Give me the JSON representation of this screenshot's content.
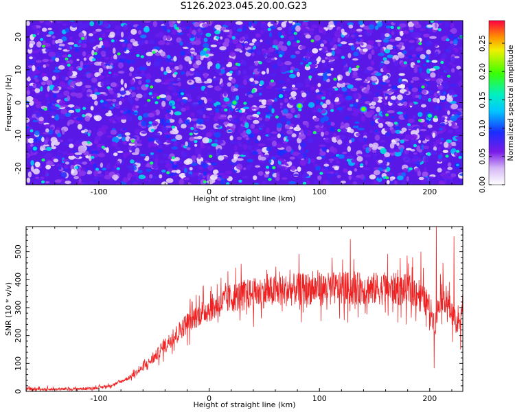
{
  "title": "S126.2023.045.20.00.G23",
  "chart_data": [
    {
      "type": "heatmap",
      "title": "S126.2023.045.20.00.G23",
      "xlabel": "Height of straight line (km)",
      "ylabel": "Frequency (Hz)",
      "xlim": [
        -166,
        230
      ],
      "ylim": [
        -25,
        25
      ],
      "xticks": [
        -100,
        0,
        100,
        200
      ],
      "xtick_labels": [
        "-100",
        "0",
        "100",
        "200"
      ],
      "yticks": [
        -20,
        -10,
        0,
        10,
        20
      ],
      "ytick_labels": [
        "-20",
        "-10",
        "0",
        "10",
        "20"
      ],
      "colorbar": {
        "label": "Normalized spectral amplitude",
        "range": [
          0.0,
          0.29
        ],
        "ticks": [
          0.0,
          0.05,
          0.1,
          0.15,
          0.2,
          0.25
        ],
        "tick_labels": [
          "0.00",
          "0.05",
          "0.10",
          "0.15",
          "0.20",
          "0.25"
        ]
      },
      "peaks": [
        {
          "x": 23,
          "y": 0,
          "value": 0.18
        },
        {
          "x": 65,
          "y": 2,
          "value": 0.15
        },
        {
          "x": 82,
          "y": -1,
          "value": 0.21
        },
        {
          "x": 140,
          "y": -2,
          "value": 0.21
        },
        {
          "x": 200,
          "y": -4,
          "value": 0.17
        },
        {
          "x": -158,
          "y": -14,
          "value": 0.14
        }
      ]
    },
    {
      "type": "line",
      "xlabel": "Height of straight line (km)",
      "ylabel": "SNR (10 * v/v)",
      "xlim": [
        -166,
        230
      ],
      "ylim": [
        0,
        590
      ],
      "xticks": [
        -100,
        0,
        100,
        200
      ],
      "xtick_labels": [
        "-100",
        "0",
        "100",
        "200"
      ],
      "yticks": [
        0,
        100,
        200,
        300,
        400,
        500
      ],
      "ytick_labels": [
        "0",
        "100",
        "200",
        "300",
        "400",
        "500"
      ],
      "color": "#ee2222",
      "series": [
        {
          "name": "SNR",
          "x": [
            -166,
            -150,
            -130,
            -110,
            -100,
            -90,
            -80,
            -70,
            -60,
            -50,
            -40,
            -30,
            -20,
            -10,
            0,
            10,
            20,
            30,
            40,
            50,
            60,
            70,
            80,
            90,
            100,
            110,
            120,
            130,
            140,
            150,
            160,
            170,
            180,
            190,
            200,
            205,
            210,
            215,
            220,
            225,
            230
          ],
          "values": [
            8,
            8,
            8,
            10,
            14,
            20,
            35,
            55,
            85,
            120,
            165,
            205,
            245,
            275,
            295,
            315,
            335,
            345,
            350,
            355,
            358,
            362,
            365,
            368,
            368,
            368,
            368,
            368,
            368,
            368,
            368,
            366,
            362,
            355,
            300,
            240,
            350,
            330,
            280,
            230,
            310
          ],
          "spikes": [
            {
              "x": 128,
              "value": 545
            },
            {
              "x": 206,
              "value": 590
            },
            {
              "x": 222,
              "value": 555
            },
            {
              "x": 192,
              "value": 500
            },
            {
              "x": 204,
              "value": 83
            },
            {
              "x": 228,
              "value": 150
            }
          ]
        }
      ]
    }
  ]
}
